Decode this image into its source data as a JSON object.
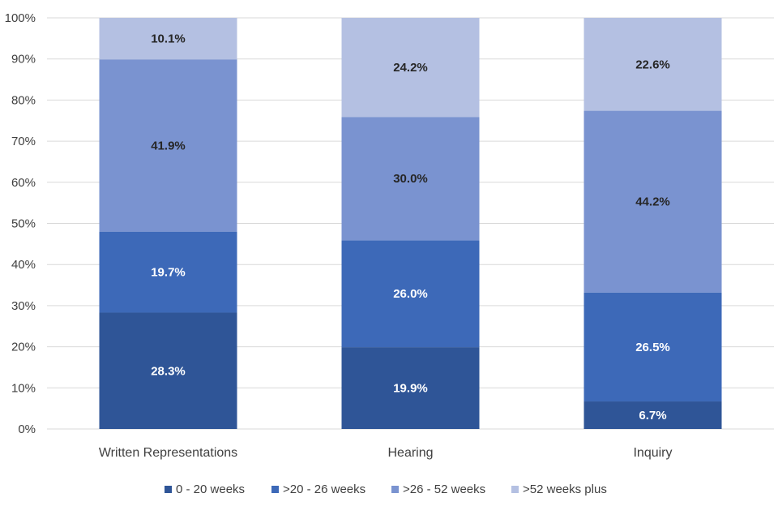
{
  "chart_data": {
    "type": "bar",
    "stacked": true,
    "percent_stacked": true,
    "title": "",
    "xlabel": "",
    "ylabel": "",
    "ylim": [
      0,
      100
    ],
    "yticks": [
      "0%",
      "10%",
      "20%",
      "30%",
      "40%",
      "50%",
      "60%",
      "70%",
      "80%",
      "90%",
      "100%"
    ],
    "categories": [
      "Written Representations",
      "Hearing",
      "Inquiry"
    ],
    "series": [
      {
        "name": "0 - 20 weeks",
        "color": "#2f5597",
        "label_color": "#ffffff",
        "values": [
          28.3,
          19.9,
          6.7
        ],
        "labels": [
          "28.3%",
          "19.9%",
          "6.7%"
        ]
      },
      {
        "name": ">20 - 26 weeks",
        "color": "#3d69b8",
        "label_color": "#ffffff",
        "values": [
          19.7,
          26.0,
          26.5
        ],
        "labels": [
          "19.7%",
          "26.0%",
          "26.5%"
        ]
      },
      {
        "name": ">26 - 52 weeks",
        "color": "#7a93d0",
        "label_color": "#262626",
        "values": [
          41.9,
          30.0,
          44.2
        ],
        "labels": [
          "41.9%",
          "30.0%",
          "44.2%"
        ]
      },
      {
        "name": ">52 weeks plus",
        "color": "#b4c0e2",
        "label_color": "#262626",
        "values": [
          10.1,
          24.2,
          22.6
        ],
        "labels": [
          "10.1%",
          "24.2%",
          "22.6%"
        ]
      }
    ],
    "grid": true,
    "gridline_color": "#d9d9d9",
    "legend_position": "bottom"
  }
}
